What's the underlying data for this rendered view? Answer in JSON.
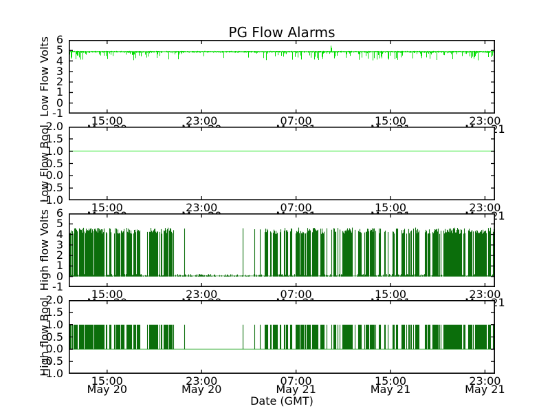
{
  "title": "PG Flow Alarms",
  "xlabel": "Date (GMT)",
  "x_axis": {
    "span_hours": 36.1,
    "ticks": [
      {
        "t": 3.25,
        "time": "15:00",
        "date": "May 20"
      },
      {
        "t": 11.25,
        "time": "23:00",
        "date": "May 20"
      },
      {
        "t": 19.25,
        "time": "07:00",
        "date": "May 21"
      },
      {
        "t": 27.25,
        "time": "15:00",
        "date": "May 21"
      },
      {
        "t": 35.25,
        "time": "23:00",
        "date": "May 21"
      }
    ]
  },
  "telegraph": {
    "seed": 1234567,
    "description": "shared alarm on/off activity for the two High flow subplots",
    "segments": [
      {
        "from": 0,
        "to": 8.8,
        "kind": "burst",
        "p_stay_on": 0.8,
        "p_off_to_on": 0.5
      },
      {
        "from": 8.8,
        "to": 16.55,
        "kind": "quiet"
      },
      {
        "from": 16.55,
        "to": 36.1,
        "kind": "burst",
        "p_stay_on": 0.8,
        "p_off_to_on": 0.45
      }
    ],
    "isolated_spikes_t": [
      8.85,
      9.77,
      14.72,
      15.71,
      16.17
    ]
  },
  "chart_data": [
    {
      "type": "line",
      "ylabel": "Low Flow Volts",
      "ylim": [
        -1,
        6
      ],
      "yticks": [
        "6",
        "5",
        "4",
        "3",
        "2",
        "1",
        "0",
        "-1"
      ],
      "color": "#00dd00",
      "color_flat": "#8af08a",
      "pattern": {
        "kind": "noisy-flat",
        "seed": 97531,
        "baseline": 4.88,
        "jitter": 0.1,
        "deep_dip_max": 0.75,
        "segments": [
          {
            "from": 0,
            "to": 9.6,
            "deep_dip_prob": 0.3
          },
          {
            "from": 9.6,
            "to": 15.7,
            "deep_dip_prob": 0.04
          },
          {
            "from": 15.7,
            "to": 36.1,
            "deep_dip_prob": 0.3
          }
        ],
        "up_spikes": [
          {
            "t": 22.2,
            "value": 5.45
          }
        ]
      }
    },
    {
      "type": "line",
      "ylabel": "Low Flow Bool",
      "ylim": [
        -1,
        2
      ],
      "yticks": [
        "2.0",
        "1.5",
        "1.0",
        "0.5",
        "0.0",
        "-0.5",
        "-1.0"
      ],
      "color": "#9cf49c",
      "pattern": {
        "kind": "constant",
        "value": 1.0
      }
    },
    {
      "type": "line",
      "ylabel": "High flow Volts",
      "ylim": [
        -1,
        6
      ],
      "yticks": [
        "6",
        "5",
        "4",
        "3",
        "2",
        "1",
        "0",
        "-1"
      ],
      "color": "#0b6e0b",
      "color_base": "#74b874",
      "pattern": {
        "kind": "telegraph-volts",
        "high_min": 4.05,
        "high_var": 0.6,
        "low_noise_max": 0.22,
        "baseline": 0.06,
        "spike_top": 4.35
      }
    },
    {
      "type": "line",
      "ylabel": "High flow Bool",
      "ylim": [
        -1,
        2
      ],
      "yticks": [
        "2.0",
        "1.5",
        "1.0",
        "0.5",
        "0.0",
        "-0.5",
        "-1.0"
      ],
      "color": "#0b6e0b",
      "color_base": "#79c979",
      "pattern": {
        "kind": "telegraph-bool",
        "high": 1.0,
        "low": 0.0
      }
    }
  ]
}
